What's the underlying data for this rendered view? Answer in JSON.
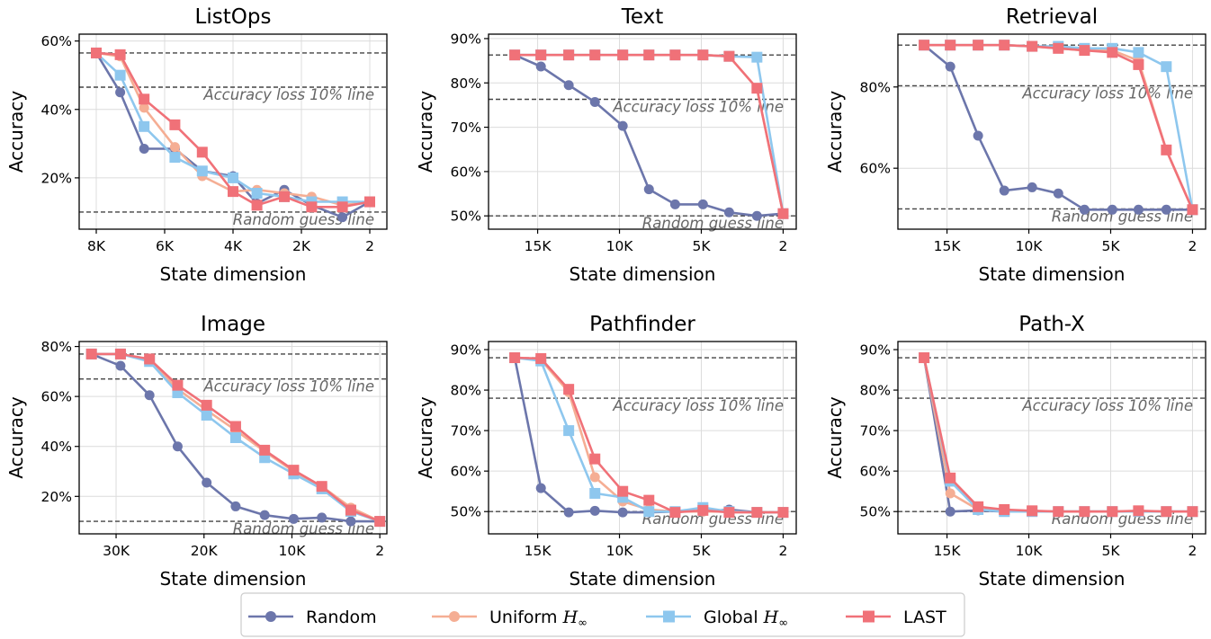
{
  "chart_data": [
    {
      "type": "line",
      "title": "ListOps",
      "xlabel": "State dimension",
      "ylabel": "Accuracy",
      "xlim": [
        8500,
        -500
      ],
      "ylim": [
        5,
        62
      ],
      "xticks": [
        8000,
        6000,
        4000,
        2000,
        0
      ],
      "xticklabels": [
        "8K",
        "6K",
        "4K",
        "2K",
        "2"
      ],
      "yticks": [
        20,
        40,
        60
      ],
      "yticklabels": [
        "20%",
        "40%",
        "60%"
      ],
      "ref_lines": [
        {
          "y": 56.5
        },
        {
          "y": 46.5,
          "label": "Accuracy loss 10% line"
        },
        {
          "y": 10,
          "label": "Random guess line"
        }
      ],
      "x": [
        8000,
        7300,
        6600,
        5700,
        4900,
        4000,
        3300,
        2500,
        1700,
        800,
        0
      ],
      "series": [
        {
          "name": "Random",
          "values": [
            56.5,
            45,
            28.5,
            28.5,
            22,
            20.5,
            12.5,
            16.5,
            12,
            8.5,
            13
          ]
        },
        {
          "name": "Uniform",
          "values": [
            56.5,
            55.5,
            40.5,
            29,
            20.5,
            16,
            16.5,
            15.5,
            14.5,
            12,
            13
          ]
        },
        {
          "name": "Global",
          "values": [
            56.5,
            50,
            35,
            26,
            22,
            20,
            15.5,
            14.5,
            13,
            13,
            13
          ]
        },
        {
          "name": "LAST",
          "values": [
            56.5,
            56,
            43,
            35.5,
            27.5,
            16,
            12,
            14.5,
            11.5,
            11.5,
            13
          ]
        }
      ]
    },
    {
      "type": "line",
      "title": "Text",
      "xlabel": "State dimension",
      "ylabel": "Accuracy",
      "xlim": [
        18000,
        -800
      ],
      "ylim": [
        47,
        91
      ],
      "xticks": [
        15000,
        10000,
        5000,
        0
      ],
      "xticklabels": [
        "15K",
        "10K",
        "5K",
        "2"
      ],
      "yticks": [
        50,
        60,
        70,
        80,
        90
      ],
      "yticklabels": [
        "50%",
        "60%",
        "70%",
        "80%",
        "90%"
      ],
      "ref_lines": [
        {
          "y": 86.3
        },
        {
          "y": 76.3,
          "label": "Accuracy loss 10% line"
        },
        {
          "y": 50,
          "label": "Random guess line"
        }
      ],
      "x": [
        16400,
        14800,
        13100,
        11500,
        9800,
        8200,
        6600,
        4900,
        3300,
        1600,
        0
      ],
      "series": [
        {
          "name": "Random",
          "values": [
            86.3,
            83.7,
            79.5,
            75.7,
            70.3,
            56,
            52.6,
            52.6,
            50.8,
            50,
            50.5
          ]
        },
        {
          "name": "Uniform",
          "values": [
            86.3,
            86.3,
            86.3,
            86.3,
            86.3,
            86.3,
            86.3,
            86.3,
            86,
            78.8,
            50.5
          ]
        },
        {
          "name": "Global",
          "values": [
            86.3,
            86.3,
            86.3,
            86.3,
            86.3,
            86.3,
            86.3,
            86.3,
            86,
            85.8,
            50.5
          ]
        },
        {
          "name": "LAST",
          "values": [
            86.3,
            86.3,
            86.3,
            86.3,
            86.3,
            86.3,
            86.3,
            86.3,
            86,
            78.8,
            50.5
          ]
        }
      ]
    },
    {
      "type": "line",
      "title": "Retrieval",
      "xlabel": "State dimension",
      "ylabel": "Accuracy",
      "xlim": [
        18000,
        -800
      ],
      "ylim": [
        45,
        93
      ],
      "xticks": [
        15000,
        10000,
        5000,
        0
      ],
      "xticklabels": [
        "15K",
        "10K",
        "5K",
        "2"
      ],
      "yticks": [
        60,
        80
      ],
      "yticklabels": [
        "60%",
        "80%"
      ],
      "ref_lines": [
        {
          "y": 90.3
        },
        {
          "y": 80.3,
          "label": "Accuracy loss 10% line"
        },
        {
          "y": 50,
          "label": "Random guess line"
        }
      ],
      "x": [
        16400,
        14800,
        13100,
        11500,
        9800,
        8200,
        6600,
        4900,
        3300,
        1600,
        0
      ],
      "series": [
        {
          "name": "Random",
          "values": [
            90.3,
            85,
            68,
            54.5,
            55.3,
            53.8,
            49.8,
            49.8,
            49.8,
            49.8,
            49.8
          ]
        },
        {
          "name": "Uniform",
          "values": [
            90.3,
            90.3,
            90.3,
            90.3,
            90,
            89.5,
            89,
            89,
            86.5,
            64.5,
            49.8
          ]
        },
        {
          "name": "Global",
          "values": [
            90.3,
            90.3,
            90.3,
            90.3,
            90,
            90,
            89.5,
            89.5,
            88.5,
            85,
            49.8
          ]
        },
        {
          "name": "LAST",
          "values": [
            90.3,
            90.3,
            90.3,
            90.3,
            90,
            89.5,
            89,
            88.5,
            85.5,
            64.5,
            49.8
          ]
        }
      ]
    },
    {
      "type": "line",
      "title": "Image",
      "xlabel": "State dimension",
      "ylabel": "Accuracy",
      "xlim": [
        34200,
        -800
      ],
      "ylim": [
        5,
        82
      ],
      "xticks": [
        30000,
        20000,
        10000,
        0
      ],
      "xticklabels": [
        "30K",
        "20K",
        "10K",
        "2"
      ],
      "yticks": [
        20,
        40,
        60,
        80
      ],
      "yticklabels": [
        "20%",
        "40%",
        "60%",
        "80%"
      ],
      "ref_lines": [
        {
          "y": 77
        },
        {
          "y": 67,
          "label": "Accuracy loss 10% line"
        },
        {
          "y": 10,
          "label": "Random guess line"
        }
      ],
      "x": [
        32800,
        29500,
        26200,
        23000,
        19700,
        16400,
        13100,
        9800,
        6600,
        3300,
        0
      ],
      "series": [
        {
          "name": "Random",
          "values": [
            77,
            72.3,
            60.5,
            40,
            25.5,
            16,
            12.5,
            11,
            11.5,
            10,
            10
          ]
        },
        {
          "name": "Uniform",
          "values": [
            77,
            77,
            74.5,
            63,
            54.5,
            46.5,
            38,
            30,
            24,
            15.5,
            10
          ]
        },
        {
          "name": "Global",
          "values": [
            77,
            77,
            74,
            61.5,
            52.5,
            43.5,
            35.5,
            29,
            23,
            14,
            10
          ]
        },
        {
          "name": "LAST",
          "values": [
            77,
            77,
            75,
            64.5,
            56.5,
            48,
            38.5,
            30.5,
            24,
            14.5,
            10
          ]
        }
      ]
    },
    {
      "type": "line",
      "title": "Pathfinder",
      "xlabel": "State dimension",
      "ylabel": "Accuracy",
      "xlim": [
        18000,
        -800
      ],
      "ylim": [
        44.5,
        92
      ],
      "xticks": [
        15000,
        10000,
        5000,
        0
      ],
      "xticklabels": [
        "15K",
        "10K",
        "5K",
        "2"
      ],
      "yticks": [
        50,
        60,
        70,
        80,
        90
      ],
      "yticklabels": [
        "50%",
        "60%",
        "70%",
        "80%",
        "90%"
      ],
      "ref_lines": [
        {
          "y": 88
        },
        {
          "y": 78,
          "label": "Accuracy loss 10% line"
        },
        {
          "y": 50,
          "label": "Random guess line"
        }
      ],
      "x": [
        16400,
        14800,
        13100,
        11500,
        9800,
        8200,
        6600,
        4900,
        3300,
        1600,
        0
      ],
      "series": [
        {
          "name": "Random",
          "values": [
            88,
            55.8,
            49.8,
            50.2,
            49.8,
            49.8,
            50,
            50,
            50.5,
            49.8,
            49.8
          ]
        },
        {
          "name": "Uniform",
          "values": [
            88,
            87.5,
            79.5,
            58.5,
            52.5,
            50.5,
            50,
            50,
            50,
            49.8,
            49.8
          ]
        },
        {
          "name": "Global",
          "values": [
            88,
            87.2,
            70,
            54.5,
            53.5,
            50,
            50,
            51,
            50,
            49.8,
            49.8
          ]
        },
        {
          "name": "LAST",
          "values": [
            88,
            87.8,
            80.2,
            63,
            55,
            52.8,
            49.8,
            50.3,
            49.8,
            49.8,
            49.8
          ]
        }
      ]
    },
    {
      "type": "line",
      "title": "Path-X",
      "xlabel": "State dimension",
      "ylabel": "Accuracy",
      "xlim": [
        18000,
        -800
      ],
      "ylim": [
        44.5,
        92
      ],
      "xticks": [
        15000,
        10000,
        5000,
        0
      ],
      "xticklabels": [
        "15K",
        "10K",
        "5K",
        "2"
      ],
      "yticks": [
        50,
        60,
        70,
        80,
        90
      ],
      "yticklabels": [
        "50%",
        "60%",
        "70%",
        "80%",
        "90%"
      ],
      "ref_lines": [
        {
          "y": 88
        },
        {
          "y": 78,
          "label": "Accuracy loss 10% line"
        },
        {
          "y": 50,
          "label": "Random guess line"
        }
      ],
      "x": [
        16400,
        14800,
        13100,
        11500,
        9800,
        8200,
        6600,
        4900,
        3300,
        1600,
        0
      ],
      "series": [
        {
          "name": "Random",
          "values": [
            88,
            50,
            50.3,
            50,
            50,
            50,
            50,
            50,
            50,
            50,
            50
          ]
        },
        {
          "name": "Uniform",
          "values": [
            88,
            54.5,
            50.5,
            50.3,
            50,
            50,
            50,
            50,
            50,
            50,
            50
          ]
        },
        {
          "name": "Global",
          "values": [
            88,
            57.5,
            50.5,
            50,
            50,
            50,
            50,
            50,
            50,
            50,
            50
          ]
        },
        {
          "name": "LAST",
          "values": [
            88,
            58.3,
            51.2,
            50.5,
            50.2,
            50,
            50,
            50,
            50.2,
            50,
            50
          ]
        }
      ]
    }
  ],
  "legend": {
    "position": "bottom-center",
    "items": [
      {
        "label": "Random",
        "marker": "circle",
        "color": "#6c76ab"
      },
      {
        "label": "Uniform ",
        "math": "H",
        "sub": "∞",
        "marker": "circle",
        "color": "#f5ae94"
      },
      {
        "label": "Global ",
        "math": "H",
        "sub": "∞",
        "marker": "square",
        "color": "#8ec7ee"
      },
      {
        "label": "LAST",
        "marker": "square",
        "color": "#f07178"
      }
    ]
  },
  "series_style": {
    "Random": {
      "color": "#6c76ab",
      "marker": "circle"
    },
    "Uniform": {
      "color": "#f5ae94",
      "marker": "circle"
    },
    "Global": {
      "color": "#8ec7ee",
      "marker": "square"
    },
    "LAST": {
      "color": "#f07178",
      "marker": "square"
    }
  }
}
